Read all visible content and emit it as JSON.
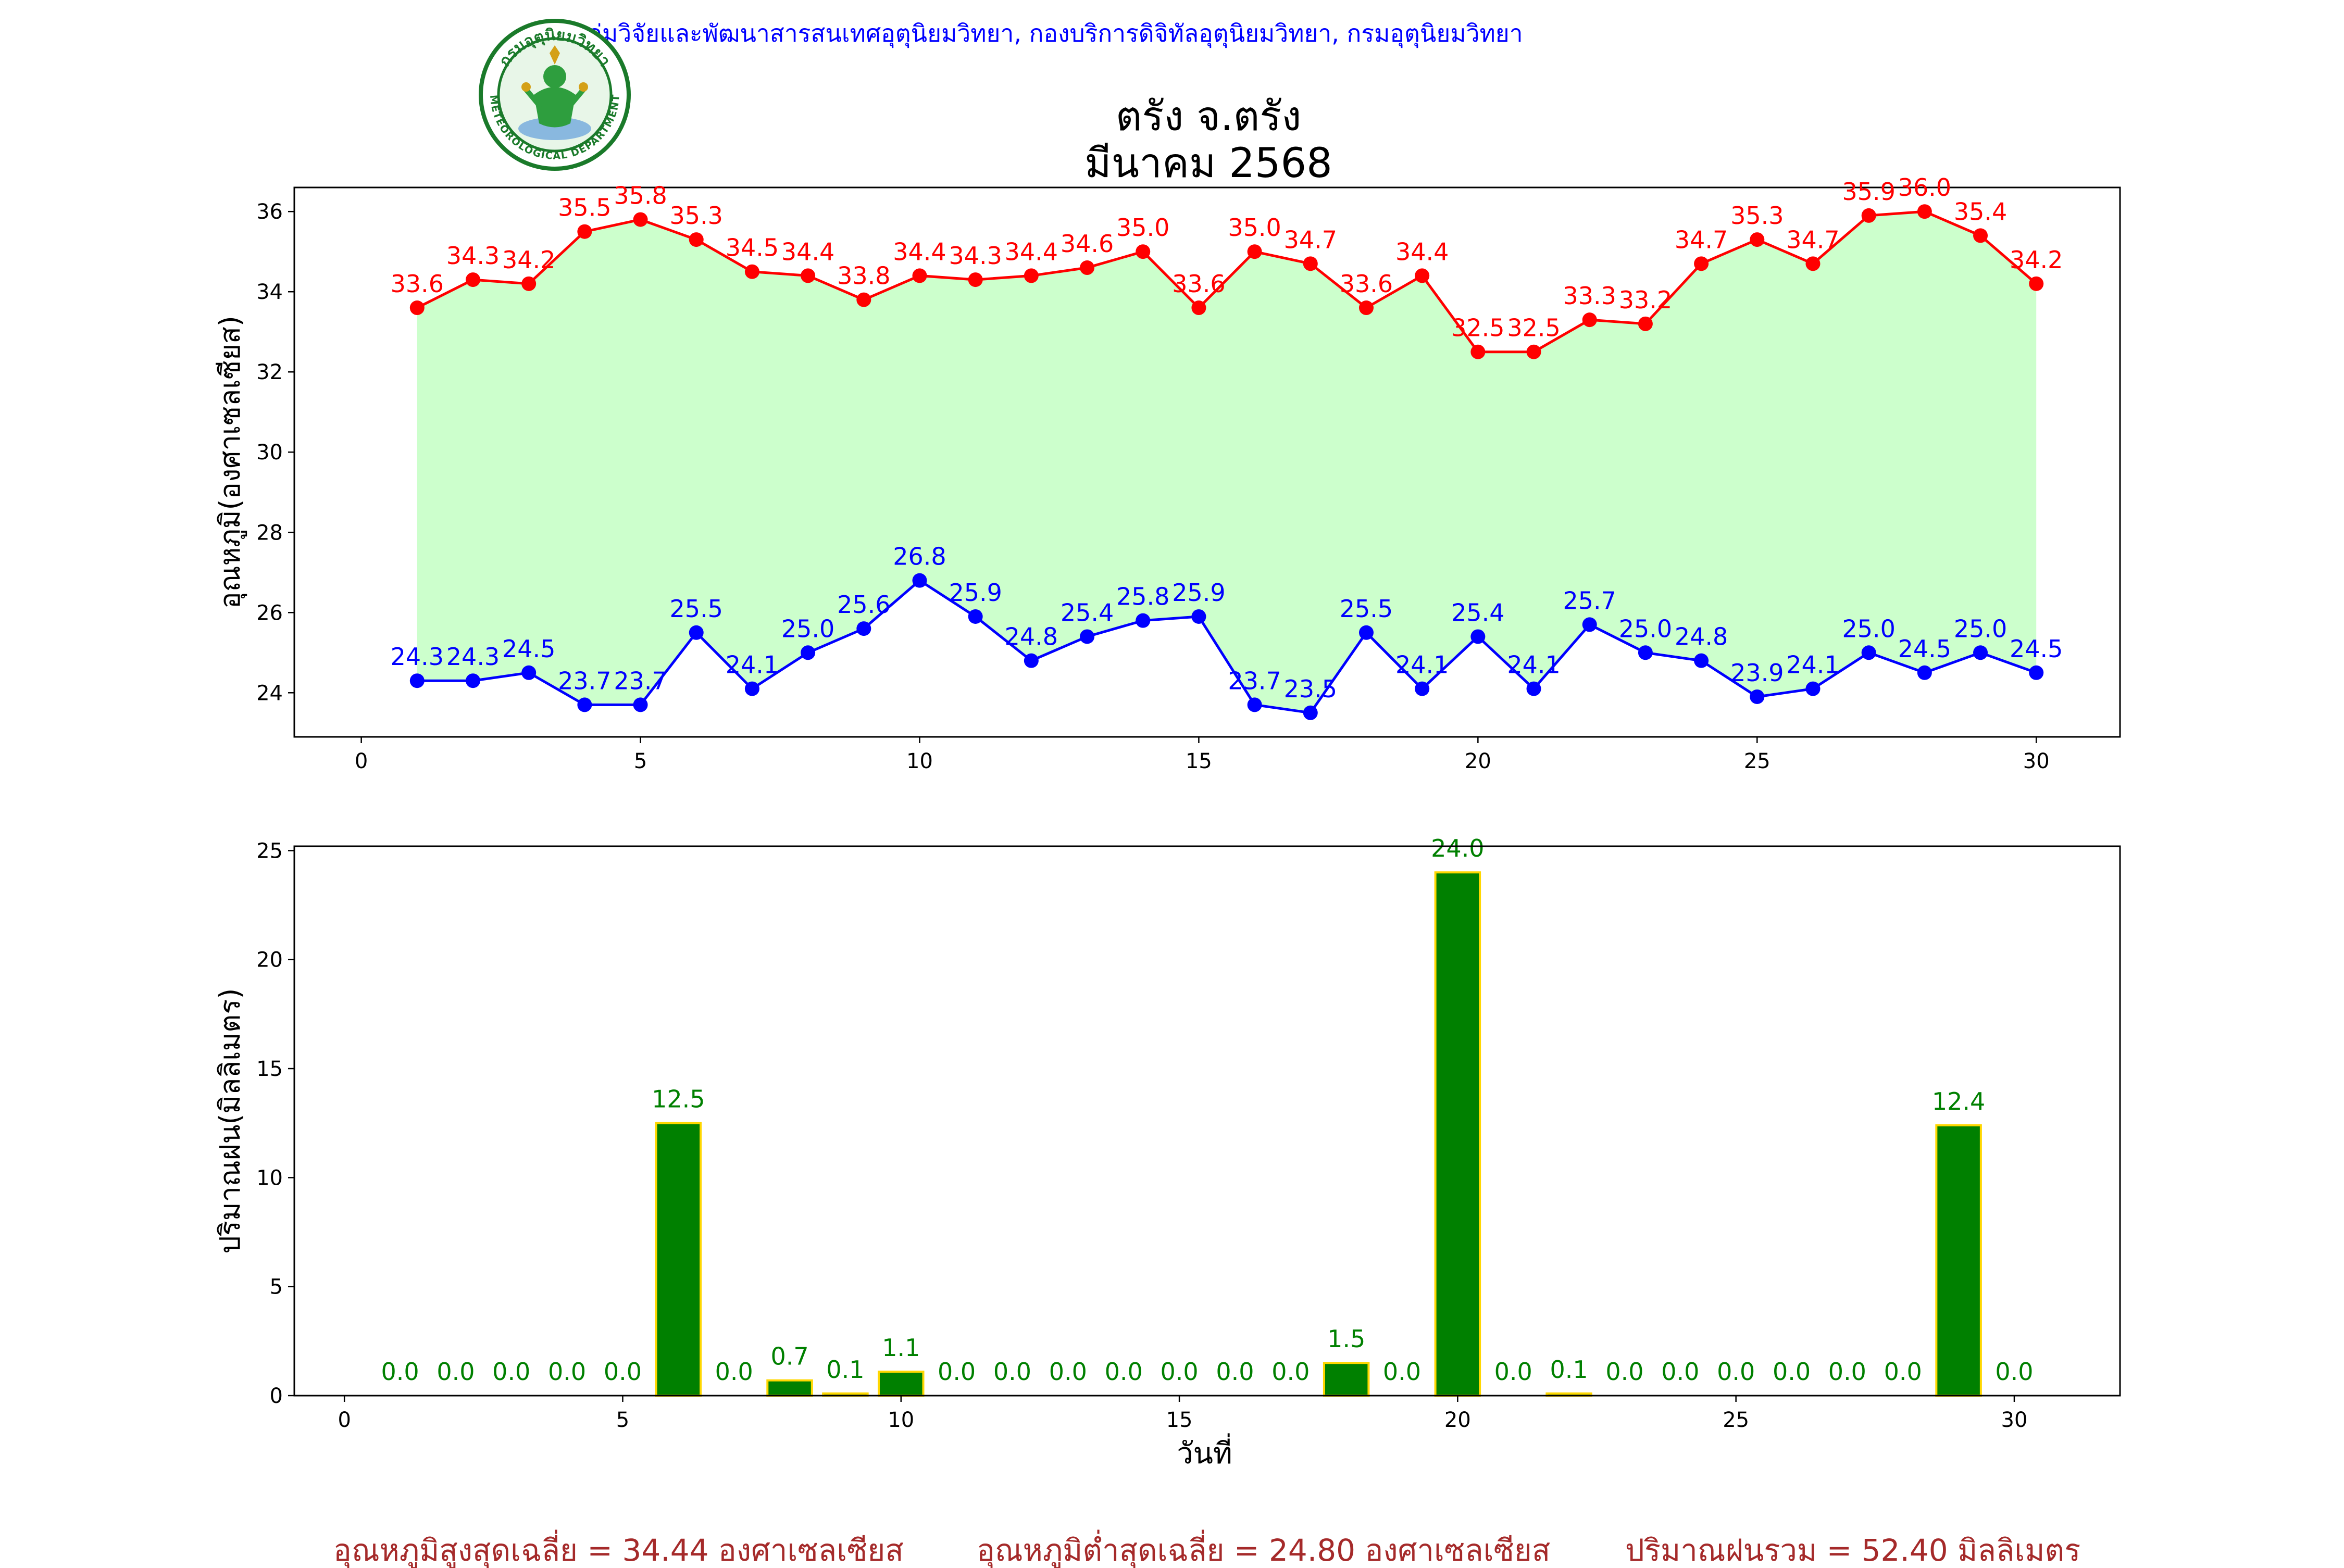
{
  "header": {
    "credit": "กลุ่มวิจัยและพัฒนาสารสนเทศอุตุนิยมวิทยา, กองบริการดิจิทัลอุตุนิยมวิทยา, กรมอุตุนิยมวิทยา",
    "title_line1": "ตรัง จ.ตรัง",
    "title_line2": "มีนาคม 2568",
    "logo_text": "กรมอุตุนิยมวิทยา",
    "logo_text_en": "METEOROLOGICAL DEPARTMENT"
  },
  "colors": {
    "max_line": "#ff0000",
    "min_line": "#0000ff",
    "fill": "#ccffcc",
    "bar_fill": "#008000",
    "bar_edge": "#ffd700",
    "bar_label": "#008000",
    "footer": "#a52a2a"
  },
  "chart_data": [
    {
      "type": "line",
      "ylabel": "อุณหภูมิ(องศาเซลเซียส)",
      "xlim": [
        -1.2,
        31.5
      ],
      "ylim": [
        22.9,
        36.6
      ],
      "xticks": [
        0,
        5,
        10,
        15,
        20,
        25,
        30
      ],
      "yticks": [
        24,
        26,
        28,
        30,
        32,
        34,
        36
      ],
      "fill_between": true,
      "x": [
        1,
        2,
        3,
        4,
        5,
        6,
        7,
        8,
        9,
        10,
        11,
        12,
        13,
        14,
        15,
        16,
        17,
        18,
        19,
        20,
        21,
        22,
        23,
        24,
        25,
        26,
        27,
        28,
        29,
        30
      ],
      "series": [
        {
          "name": "max",
          "values": [
            33.6,
            34.3,
            34.2,
            35.5,
            35.8,
            35.3,
            34.5,
            34.4,
            33.8,
            34.4,
            34.3,
            34.4,
            34.6,
            35.0,
            33.6,
            35.0,
            34.7,
            33.6,
            34.4,
            32.5,
            32.5,
            33.3,
            33.2,
            34.7,
            35.3,
            34.7,
            35.9,
            36.0,
            35.4,
            34.2
          ]
        },
        {
          "name": "min",
          "values": [
            24.3,
            24.3,
            24.5,
            23.7,
            23.7,
            25.5,
            24.1,
            25.0,
            25.6,
            26.8,
            25.9,
            24.8,
            25.4,
            25.8,
            25.9,
            23.7,
            23.5,
            25.5,
            24.1,
            25.4,
            24.1,
            25.7,
            25.0,
            24.8,
            23.9,
            24.1,
            25.0,
            24.5,
            25.0,
            24.5
          ]
        }
      ]
    },
    {
      "type": "bar",
      "xlabel": "วันที่",
      "ylabel": "ปริมาณฝน(มิลลิเมตร)",
      "xlim": [
        -0.9,
        31.9
      ],
      "ylim": [
        0,
        25.2
      ],
      "xticks": [
        0,
        5,
        10,
        15,
        20,
        25,
        30
      ],
      "yticks": [
        0,
        5,
        10,
        15,
        20,
        25
      ],
      "categories": [
        1,
        2,
        3,
        4,
        5,
        6,
        7,
        8,
        9,
        10,
        11,
        12,
        13,
        14,
        15,
        16,
        17,
        18,
        19,
        20,
        21,
        22,
        23,
        24,
        25,
        26,
        27,
        28,
        29,
        30
      ],
      "values": [
        0.0,
        0.0,
        0.0,
        0.0,
        0.0,
        12.5,
        0.0,
        0.7,
        0.1,
        1.1,
        0.0,
        0.0,
        0.0,
        0.0,
        0.0,
        0.0,
        0.0,
        1.5,
        0.0,
        24.0,
        0.0,
        0.1,
        0.0,
        0.0,
        0.0,
        0.0,
        0.0,
        0.0,
        12.4,
        0.0
      ]
    }
  ],
  "footer": {
    "avg_max": "อุณหภูมิสูงสุดเฉลี่ย = 34.44 องศาเซลเซียส",
    "avg_min": "อุณหภูมิต่ำสุดเฉลี่ย = 24.80 องศาเซลเซียส",
    "total_rain": "ปริมาณฝนรวม = 52.40 มิลลิเมตร"
  }
}
